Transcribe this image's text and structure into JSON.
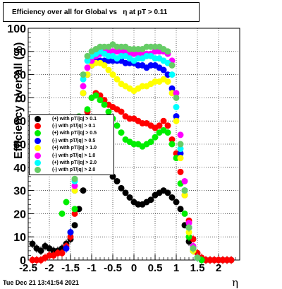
{
  "title": "Efficiency over all for Global vs   η at pT > 0.11",
  "footer_timestamp": "Tue Dec 21 13:41:54 2021",
  "chart_data": {
    "type": "scatter",
    "title": "Efficiency over all for Global vs   η at pT > 0.11",
    "xlabel": "η",
    "ylabel": "Efficiency over all (%)",
    "xlim": [
      -2.5,
      2.5
    ],
    "ylim": [
      0,
      100
    ],
    "x_ticks": [
      "-2.5",
      "-2",
      "-1.5",
      "-1",
      "-0.5",
      "0",
      "0.5",
      "1",
      "1.5",
      "2"
    ],
    "y_ticks": [
      "0",
      "10",
      "20",
      "30",
      "40",
      "50",
      "60",
      "70",
      "80",
      "90",
      "100"
    ],
    "grid": true,
    "legend_position": "left",
    "series": [
      {
        "name": "(+) with pT/|q| > 0.1",
        "color": "#000000",
        "x": [
          -2.4,
          -2.3,
          -2.2,
          -2.1,
          -2.0,
          -1.9,
          -1.8,
          -1.7,
          -1.6,
          -1.5,
          -1.4,
          -1.3,
          -1.2,
          -1.1,
          -1.0,
          -0.9,
          -0.8,
          -0.7,
          -0.6,
          -0.5,
          -0.4,
          -0.3,
          -0.2,
          -0.1,
          0.0,
          0.1,
          0.2,
          0.3,
          0.4,
          0.5,
          0.6,
          0.7,
          0.8,
          0.9,
          1.0,
          1.1,
          1.2,
          1.3,
          1.4,
          1.5,
          1.6,
          1.7,
          1.8,
          1.9,
          2.0,
          2.1,
          2.2,
          2.3
        ],
        "y": [
          7,
          5,
          4,
          6,
          5,
          4,
          4,
          5,
          7,
          9,
          15,
          22,
          30,
          38,
          40,
          40,
          40,
          40,
          38,
          36,
          34,
          31,
          29,
          27,
          25,
          24,
          24,
          25,
          26,
          28,
          29,
          30,
          29,
          27,
          25,
          22,
          15,
          8,
          4,
          1,
          0,
          0,
          0,
          0,
          0,
          0,
          0,
          0
        ]
      },
      {
        "name": "(-) with pT/|q| > 0.1",
        "color": "#ff0000",
        "x": [
          -2.4,
          -2.3,
          -2.2,
          -2.1,
          -2.0,
          -1.9,
          -1.8,
          -1.7,
          -1.6,
          -1.5,
          -1.4,
          -1.3,
          -1.2,
          -1.1,
          -1.0,
          -0.9,
          -0.8,
          -0.7,
          -0.6,
          -0.5,
          -0.4,
          -0.3,
          -0.2,
          -0.1,
          0.0,
          0.1,
          0.2,
          0.3,
          0.4,
          0.5,
          0.6,
          0.7,
          0.8,
          0.9,
          1.0,
          1.1,
          1.2,
          1.3,
          1.4,
          1.5,
          1.6,
          1.7,
          1.8,
          1.9,
          2.0,
          2.1,
          2.2,
          2.3
        ],
        "y": [
          0,
          0,
          0,
          1,
          2,
          2,
          3,
          3,
          6,
          10,
          20,
          40,
          55,
          64,
          70,
          72,
          71,
          69,
          67,
          66,
          65,
          64,
          62,
          61,
          61,
          60,
          59,
          59,
          58,
          57,
          58,
          60,
          58,
          52,
          46,
          38,
          28,
          17,
          9,
          3,
          1,
          0,
          0,
          0,
          0,
          0,
          0,
          0
        ]
      },
      {
        "name": "(+) with pT/|q| > 0.5",
        "color": "#00ee00",
        "x": [
          -2.0,
          -1.7,
          -1.6,
          -1.5,
          -1.4,
          -1.3,
          -1.2,
          -1.1,
          -1.0,
          -0.9,
          -0.8,
          -0.7,
          -0.6,
          -0.5,
          -0.4,
          -0.3,
          -0.2,
          -0.1,
          0.0,
          0.1,
          0.2,
          0.3,
          0.4,
          0.5,
          0.6,
          0.7,
          0.8,
          0.9,
          1.0,
          1.1,
          1.2,
          1.3,
          1.4,
          1.5,
          1.6
        ],
        "y": [
          58,
          20,
          25,
          12,
          22,
          38,
          55,
          65,
          70,
          71,
          69,
          67,
          64,
          61,
          58,
          55,
          52,
          51,
          50,
          50,
          49,
          50,
          51,
          53,
          55,
          56,
          55,
          50,
          44,
          33,
          20,
          10,
          4,
          1,
          0
        ]
      },
      {
        "name": "(-) with pT/|q| > 0.5",
        "color": "#0000ff",
        "x": [
          -1.6,
          -1.5,
          -1.4,
          -1.3,
          -1.2,
          -1.1,
          -1.0,
          -0.9,
          -0.8,
          -0.7,
          -0.6,
          -0.5,
          -0.4,
          -0.3,
          -0.2,
          -0.1,
          0.0,
          0.1,
          0.2,
          0.3,
          0.4,
          0.5,
          0.6,
          0.7,
          0.8,
          0.9,
          1.0,
          1.1,
          1.2,
          1.3,
          1.4,
          1.5
        ],
        "y": [
          5,
          12,
          30,
          55,
          72,
          80,
          84,
          86,
          86,
          86,
          86,
          86,
          86,
          86,
          85,
          85,
          85,
          84,
          84,
          83,
          84,
          84,
          83,
          82,
          80,
          74,
          62,
          46,
          30,
          14,
          5,
          1
        ]
      },
      {
        "name": "(+) with pT/|q| > 1.0",
        "color": "#ffff00",
        "x": [
          -1.4,
          -1.3,
          -1.2,
          -1.1,
          -1.0,
          -0.9,
          -0.8,
          -0.7,
          -0.6,
          -0.5,
          -0.4,
          -0.3,
          -0.2,
          -0.1,
          0.0,
          0.1,
          0.2,
          0.3,
          0.4,
          0.5,
          0.6,
          0.7,
          0.8,
          0.9,
          1.0,
          1.1,
          1.2,
          1.3,
          1.4
        ],
        "y": [
          30,
          55,
          72,
          80,
          84,
          85,
          85,
          84,
          82,
          80,
          78,
          76,
          75,
          74,
          73,
          74,
          75,
          75,
          76,
          77,
          77,
          78,
          77,
          72,
          60,
          44,
          28,
          12,
          4
        ]
      },
      {
        "name": "(-) with pT/|q| > 1.0",
        "color": "#ff00ff",
        "x": [
          -1.4,
          -1.3,
          -1.2,
          -1.1,
          -1.0,
          -0.9,
          -0.8,
          -0.7,
          -0.6,
          -0.5,
          -0.4,
          -0.3,
          -0.2,
          -0.1,
          0.0,
          0.1,
          0.2,
          0.3,
          0.4,
          0.5,
          0.6,
          0.7,
          0.8,
          0.9,
          1.0,
          1.1,
          1.2,
          1.3,
          1.4,
          1.5
        ],
        "y": [
          32,
          58,
          75,
          83,
          86,
          88,
          89,
          90,
          90,
          90,
          90,
          90,
          90,
          89,
          89,
          89,
          89,
          89,
          89,
          90,
          90,
          90,
          89,
          86,
          72,
          54,
          34,
          16,
          6,
          1
        ]
      },
      {
        "name": "(+) with pT/|q| > 2.0",
        "color": "#00ffff",
        "x": [
          -1.4,
          -1.3,
          -1.2,
          -1.1,
          -1.0,
          -0.9,
          -0.8,
          -0.7,
          -0.6,
          -0.5,
          -0.4,
          -0.3,
          -0.2,
          -0.1,
          0.0,
          0.1,
          0.2,
          0.3,
          0.4,
          0.5,
          0.6,
          0.7,
          0.8,
          0.9,
          1.0,
          1.1,
          1.2,
          1.3,
          1.4,
          1.5
        ],
        "y": [
          34,
          60,
          78,
          86,
          88,
          89,
          90,
          89,
          88,
          88,
          87,
          88,
          88,
          87,
          86,
          87,
          87,
          88,
          88,
          87,
          87,
          86,
          85,
          80,
          66,
          48,
          30,
          14,
          5,
          1
        ]
      },
      {
        "name": "(-) with pT/|q| > 2.0",
        "color": "#66cc66",
        "x": [
          -1.4,
          -1.3,
          -1.2,
          -1.1,
          -1.0,
          -0.9,
          -0.8,
          -0.7,
          -0.6,
          -0.5,
          -0.4,
          -0.3,
          -0.2,
          -0.1,
          0.0,
          0.1,
          0.2,
          0.3,
          0.4,
          0.5,
          0.6,
          0.7,
          0.8,
          0.9,
          1.0,
          1.1,
          1.2,
          1.3,
          1.4,
          1.5
        ],
        "y": [
          35,
          62,
          80,
          88,
          90,
          91,
          92,
          92,
          92,
          93,
          92,
          92,
          92,
          91,
          91,
          91,
          91,
          92,
          92,
          92,
          92,
          91,
          90,
          84,
          70,
          50,
          30,
          14,
          5,
          1
        ]
      }
    ]
  }
}
